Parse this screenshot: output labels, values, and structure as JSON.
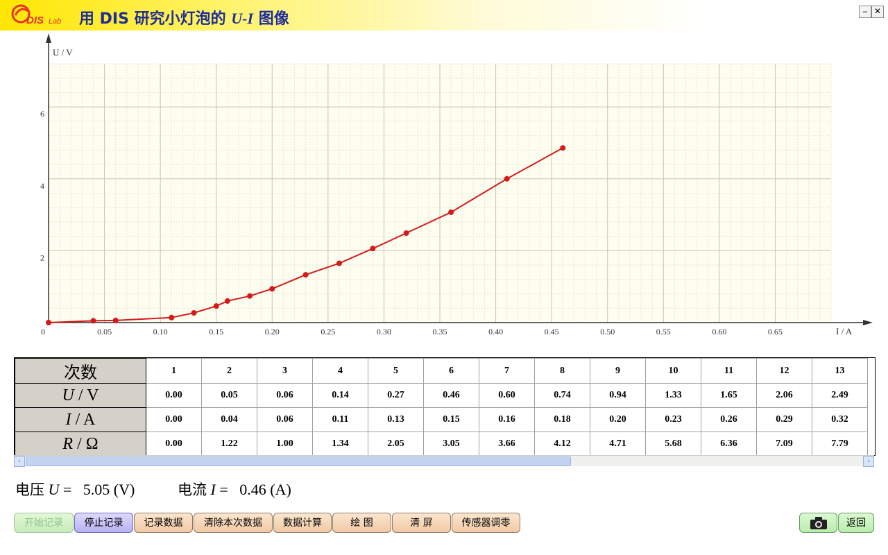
{
  "window": {
    "title_prefix": "用 DIS 研究小灯泡的 ",
    "title_var": "U-I",
    "title_suffix": " 图像",
    "logo_text": "DISLab",
    "minimize_label": "–",
    "close_label": "✕"
  },
  "chart_data": {
    "type": "line",
    "title": "",
    "xlabel": "I / A",
    "ylabel": "U / V",
    "xlim": [
      0,
      0.7
    ],
    "ylim": [
      0,
      7.2
    ],
    "x_ticks": [
      "0",
      "0.05",
      "0.10",
      "0.15",
      "0.20",
      "0.25",
      "0.30",
      "0.35",
      "0.40",
      "0.45",
      "0.50",
      "0.55",
      "0.60",
      "0.65"
    ],
    "x_tick_values": [
      0,
      0.05,
      0.1,
      0.15,
      0.2,
      0.25,
      0.3,
      0.35,
      0.4,
      0.45,
      0.5,
      0.55,
      0.6,
      0.65
    ],
    "y_ticks": [
      "2",
      "4",
      "6"
    ],
    "y_tick_values": [
      2,
      4,
      6
    ],
    "grid": true,
    "line_color": "#d51a1a",
    "background_color": "#fdfdf0",
    "series": [
      {
        "x": [
          0.0,
          0.04,
          0.06,
          0.11,
          0.13,
          0.15,
          0.16,
          0.18,
          0.2,
          0.23,
          0.26,
          0.29,
          0.32,
          0.36,
          0.41,
          0.46
        ],
        "values": [
          0.0,
          0.05,
          0.06,
          0.14,
          0.27,
          0.46,
          0.6,
          0.74,
          0.94,
          1.33,
          1.65,
          2.06,
          2.49,
          3.07,
          4.0,
          4.86
        ]
      }
    ]
  },
  "table": {
    "row_headers": [
      {
        "name": "次数",
        "unit": ""
      },
      {
        "name": "U",
        "unit": " / V"
      },
      {
        "name": "I",
        "unit": " / A"
      },
      {
        "name": "R",
        "unit": " / Ω"
      }
    ],
    "columns": [
      "1",
      "2",
      "3",
      "4",
      "5",
      "6",
      "7",
      "8",
      "9",
      "10",
      "11",
      "12",
      "13"
    ],
    "U": [
      "0.00",
      "0.05",
      "0.06",
      "0.14",
      "0.27",
      "0.46",
      "0.60",
      "0.74",
      "0.94",
      "1.33",
      "1.65",
      "2.06",
      "2.49"
    ],
    "I": [
      "0.00",
      "0.04",
      "0.06",
      "0.11",
      "0.13",
      "0.15",
      "0.16",
      "0.18",
      "0.20",
      "0.23",
      "0.26",
      "0.29",
      "0.32"
    ],
    "R": [
      "0.00",
      "1.22",
      "1.00",
      "1.34",
      "2.05",
      "3.05",
      "3.66",
      "4.12",
      "4.71",
      "5.68",
      "6.36",
      "7.09",
      "7.79"
    ],
    "scroll_left": "‹",
    "scroll_right": "›"
  },
  "readout": {
    "voltage_label": "电压",
    "voltage_var": "U",
    "voltage_eq": " =   5.05 (V)",
    "current_label": "电流",
    "current_var": "I",
    "current_eq": " =   0.46 (A)"
  },
  "buttons": {
    "start": "开始记录",
    "stop": "停止记录",
    "record": "记录数据",
    "clear": "清除本次数据",
    "calc": "数据计算",
    "plot": "绘  图",
    "clear_screen": "清  屏",
    "zero": "传感器调零",
    "back": "返回",
    "camera_icon": "camera-icon"
  }
}
